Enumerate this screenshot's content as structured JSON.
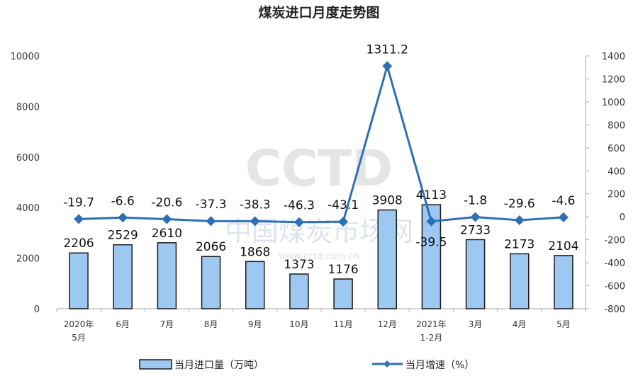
{
  "chart_data": {
    "type": "bar+line",
    "title": "煤炭进口月度走势图",
    "categories": [
      "2020年\n5月",
      "6月",
      "7月",
      "8月",
      "9月",
      "10月",
      "11月",
      "12月",
      "2021年\n1-2月",
      "3月",
      "4月",
      "5月"
    ],
    "series": [
      {
        "name": "当月进口量（万吨）",
        "type": "bar",
        "axis": "left",
        "color": "#9dc8f2",
        "values": [
          2206,
          2529,
          2610,
          2066,
          1868,
          1373,
          1176,
          3908,
          4113,
          2733,
          2173,
          2104
        ]
      },
      {
        "name": "当月增速（%）",
        "type": "line",
        "axis": "right",
        "color": "#2e6fb8",
        "values": [
          -19.7,
          -6.6,
          -20.6,
          -37.3,
          -38.3,
          -46.3,
          -43.1,
          1311.2,
          -39.5,
          -1.8,
          -29.6,
          -4.6
        ]
      }
    ],
    "left_axis": {
      "range": [
        0,
        10000
      ],
      "ticks": [
        0,
        2000,
        4000,
        6000,
        8000,
        10000
      ]
    },
    "right_axis": {
      "range": [
        -800,
        1400
      ],
      "ticks": [
        -800,
        -600,
        -400,
        -200,
        0,
        200,
        400,
        600,
        800,
        1000,
        1200,
        1400
      ]
    },
    "grid": false,
    "legend": "bottom"
  },
  "watermark": {
    "logo": "CCTD",
    "name": "中国煤炭市场网",
    "url": "www.cctd.com.cn"
  }
}
